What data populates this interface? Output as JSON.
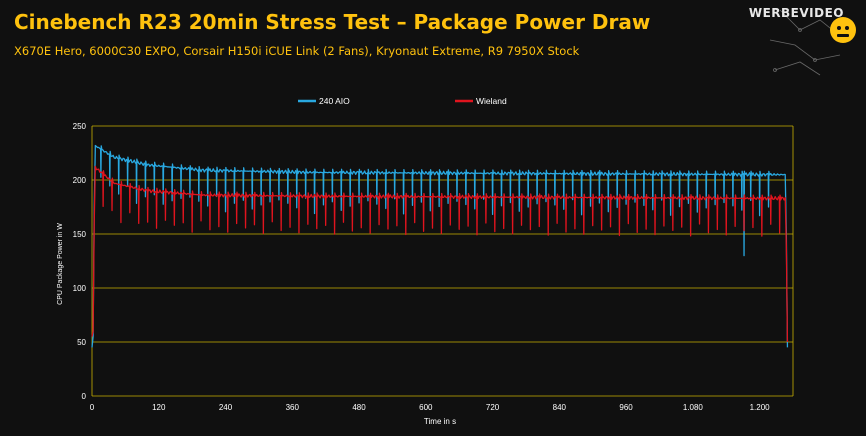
{
  "header": {
    "title": "Cinebench R23 20min Stress Test – Package Power Draw",
    "subtitle": "X670E Hero, 6000C30 EXPO, Corsair H150i iCUE Link (2 Fans), Kryonaut Extreme, R9 7950X Stock"
  },
  "logo": {
    "text": "WERBEVIDEO",
    "icon": "gamepad-logo-icon"
  },
  "colors": {
    "accent": "#ffc20e",
    "grid": "#c8b100",
    "series_aio": "#29a8e0",
    "series_wieland": "#e0141e",
    "axis_text": "#ffffff"
  },
  "chart_data": {
    "type": "line",
    "title": "",
    "xlabel": "Time in s",
    "ylabel": "CPU Package Power in W",
    "xlim": [
      0,
      1260
    ],
    "ylim": [
      0,
      250
    ],
    "x_ticks": [
      0,
      120,
      240,
      360,
      480,
      600,
      720,
      840,
      960,
      1080,
      1200
    ],
    "x_tick_labels": [
      "0",
      "120",
      "240",
      "360",
      "480",
      "600",
      "720",
      "840",
      "960",
      "1.080",
      "1.200"
    ],
    "y_ticks": [
      0,
      50,
      100,
      150,
      200,
      250
    ],
    "grid": true,
    "legend_position": "top-center",
    "series": [
      {
        "name": "240 AIO",
        "color": "#29a8e0",
        "baseline": [
          [
            0,
            45
          ],
          [
            2,
            55
          ],
          [
            5,
            232
          ],
          [
            40,
            221
          ],
          [
            100,
            214
          ],
          [
            200,
            209
          ],
          [
            400,
            207
          ],
          [
            800,
            206
          ],
          [
            1200,
            205
          ],
          [
            1247,
            205
          ],
          [
            1250,
            45
          ]
        ],
        "dip_every_s": 16,
        "dip_start_s": 16,
        "dip_end_s": 1240,
        "dip_depths": [
          26,
          29,
          33,
          24,
          38,
          30,
          27,
          35,
          31,
          28
        ],
        "extra_dips": [
          [
            1172,
            130
          ],
          [
            1216,
            148
          ]
        ]
      },
      {
        "name": "Wieland",
        "color": "#e0141e",
        "baseline": [
          [
            0,
            55
          ],
          [
            2,
            60
          ],
          [
            5,
            212
          ],
          [
            40,
            197
          ],
          [
            100,
            190
          ],
          [
            200,
            186
          ],
          [
            400,
            185
          ],
          [
            800,
            184
          ],
          [
            1200,
            183
          ],
          [
            1247,
            183
          ],
          [
            1250,
            50
          ]
        ],
        "dip_every_s": 16,
        "dip_start_s": 20,
        "dip_end_s": 1240,
        "dip_depths": [
          30,
          27,
          35,
          24,
          32,
          29,
          34,
          26
        ],
        "extra_dips": []
      }
    ]
  }
}
